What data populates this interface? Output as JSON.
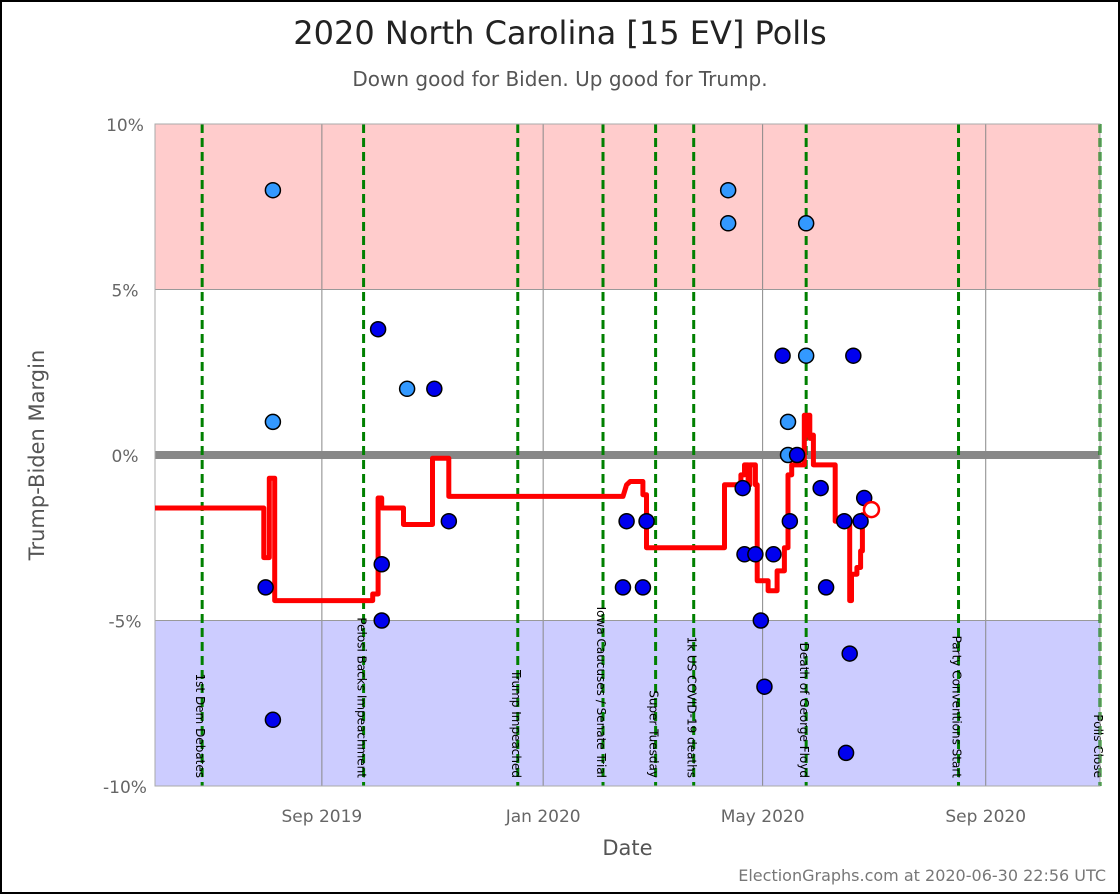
{
  "chart_data": {
    "type": "scatter",
    "title": "2020 North Carolina [15 EV] Polls",
    "subtitle": "Down good for Biden. Up good for Trump.",
    "xlabel": "Date",
    "ylabel": "Trump-Biden Margin",
    "ylim": [
      -10,
      10
    ],
    "xlim": [
      "2019-06-01",
      "2020-11-03"
    ],
    "yticks": [
      {
        "value": 10,
        "label": "10%"
      },
      {
        "value": 5,
        "label": "5%"
      },
      {
        "value": 0,
        "label": "0%"
      },
      {
        "value": -5,
        "label": "-5%"
      },
      {
        "value": -10,
        "label": "-10%"
      }
    ],
    "xticks": [
      {
        "date": "2019-09-01",
        "label": "Sep 2019"
      },
      {
        "date": "2020-01-01",
        "label": "Jan 2020"
      },
      {
        "date": "2020-05-01",
        "label": "May 2020"
      },
      {
        "date": "2020-09-01",
        "label": "Sep 2020"
      }
    ],
    "bands": [
      {
        "from": 5,
        "to": 10,
        "color": "#ffcccc"
      },
      {
        "from": -10,
        "to": -5,
        "color": "#ccccff"
      }
    ],
    "events": [
      {
        "date": "2019-06-27",
        "label": "1st Dem Debates"
      },
      {
        "date": "2019-09-24",
        "label": "Pelosi Backs Impeachment"
      },
      {
        "date": "2019-12-18",
        "label": "Trump Impeached"
      },
      {
        "date": "2020-02-03",
        "label": "Iowa Caucuses / Senate Trial"
      },
      {
        "date": "2020-03-03",
        "label": "Super Tuesday"
      },
      {
        "date": "2020-03-24",
        "label": "1k US COVID-19 deaths"
      },
      {
        "date": "2020-05-25",
        "label": "Death of George Floyd"
      },
      {
        "date": "2020-08-17",
        "label": "Party Conventions Start"
      },
      {
        "date": "2020-11-03",
        "label": "Polls Close"
      }
    ],
    "polls": [
      {
        "date": "2019-08-05",
        "margin": 8,
        "type": "light"
      },
      {
        "date": "2019-08-05",
        "margin": 1,
        "type": "light"
      },
      {
        "date": "2019-08-01",
        "margin": -4,
        "type": "dark"
      },
      {
        "date": "2019-08-05",
        "margin": -8,
        "type": "dark"
      },
      {
        "date": "2019-10-02",
        "margin": 3.8,
        "type": "dark"
      },
      {
        "date": "2019-10-04",
        "margin": -3.3,
        "type": "dark"
      },
      {
        "date": "2019-10-04",
        "margin": -5,
        "type": "dark"
      },
      {
        "date": "2019-10-18",
        "margin": 2,
        "type": "light"
      },
      {
        "date": "2019-11-02",
        "margin": 2,
        "type": "dark"
      },
      {
        "date": "2019-11-10",
        "margin": -2,
        "type": "dark"
      },
      {
        "date": "2020-02-14",
        "margin": -4,
        "type": "dark"
      },
      {
        "date": "2020-02-16",
        "margin": -2,
        "type": "dark"
      },
      {
        "date": "2020-02-25",
        "margin": -4,
        "type": "dark"
      },
      {
        "date": "2020-02-27",
        "margin": -2,
        "type": "dark"
      },
      {
        "date": "2020-04-12",
        "margin": 8,
        "type": "light"
      },
      {
        "date": "2020-04-12",
        "margin": 7,
        "type": "light"
      },
      {
        "date": "2020-04-20",
        "margin": -1,
        "type": "dark"
      },
      {
        "date": "2020-04-21",
        "margin": -3,
        "type": "dark"
      },
      {
        "date": "2020-04-27",
        "margin": -3,
        "type": "dark"
      },
      {
        "date": "2020-04-30",
        "margin": -5,
        "type": "dark"
      },
      {
        "date": "2020-05-02",
        "margin": -7,
        "type": "dark"
      },
      {
        "date": "2020-05-07",
        "margin": -3,
        "type": "dark"
      },
      {
        "date": "2020-05-12",
        "margin": 3,
        "type": "dark"
      },
      {
        "date": "2020-05-15",
        "margin": 1,
        "type": "light"
      },
      {
        "date": "2020-05-15",
        "margin": 0,
        "type": "light"
      },
      {
        "date": "2020-05-16",
        "margin": -2,
        "type": "dark"
      },
      {
        "date": "2020-05-20",
        "margin": 0,
        "type": "dark"
      },
      {
        "date": "2020-05-25",
        "margin": 3,
        "type": "light"
      },
      {
        "date": "2020-05-25",
        "margin": 7,
        "type": "light"
      },
      {
        "date": "2020-06-02",
        "margin": -1,
        "type": "dark"
      },
      {
        "date": "2020-06-05",
        "margin": -4,
        "type": "dark"
      },
      {
        "date": "2020-06-15",
        "margin": -2,
        "type": "dark"
      },
      {
        "date": "2020-06-16",
        "margin": -9,
        "type": "dark"
      },
      {
        "date": "2020-06-18",
        "margin": -6,
        "type": "dark"
      },
      {
        "date": "2020-06-20",
        "margin": 3,
        "type": "dark"
      },
      {
        "date": "2020-06-24",
        "margin": -2,
        "type": "dark"
      },
      {
        "date": "2020-06-26",
        "margin": -1.3,
        "type": "dark"
      }
    ],
    "average": [
      [
        "2019-06-01",
        -1.6
      ],
      [
        "2019-07-31",
        -1.6
      ],
      [
        "2019-07-31",
        -3.1
      ],
      [
        "2019-08-03",
        -3.1
      ],
      [
        "2019-08-03",
        -0.7
      ],
      [
        "2019-08-06",
        -0.7
      ],
      [
        "2019-08-06",
        -4.4
      ],
      [
        "2019-09-29",
        -4.4
      ],
      [
        "2019-09-29",
        -4.2
      ],
      [
        "2019-10-02",
        -4.2
      ],
      [
        "2019-10-02",
        -1.3
      ],
      [
        "2019-10-04",
        -1.3
      ],
      [
        "2019-10-04",
        -1.6
      ],
      [
        "2019-10-16",
        -1.6
      ],
      [
        "2019-10-16",
        -2.1
      ],
      [
        "2019-11-01",
        -2.1
      ],
      [
        "2019-11-01",
        -0.1
      ],
      [
        "2019-11-10",
        -0.1
      ],
      [
        "2019-11-10",
        -1.25
      ],
      [
        "2020-02-14",
        -1.25
      ],
      [
        "2020-02-16",
        -0.9
      ],
      [
        "2020-02-18",
        -0.8
      ],
      [
        "2020-02-25",
        -0.8
      ],
      [
        "2020-02-25",
        -1.2
      ],
      [
        "2020-02-27",
        -1.2
      ],
      [
        "2020-02-27",
        -2.8
      ],
      [
        "2020-04-10",
        -2.8
      ],
      [
        "2020-04-10",
        -0.9
      ],
      [
        "2020-04-19",
        -0.9
      ],
      [
        "2020-04-19",
        -0.6
      ],
      [
        "2020-04-21",
        -0.6
      ],
      [
        "2020-04-21",
        -0.3
      ],
      [
        "2020-04-23",
        -0.3
      ],
      [
        "2020-04-23",
        -0.9
      ],
      [
        "2020-04-24",
        -0.9
      ],
      [
        "2020-04-24",
        -0.3
      ],
      [
        "2020-04-27",
        -0.3
      ],
      [
        "2020-04-27",
        -0.9
      ],
      [
        "2020-04-28",
        -0.9
      ],
      [
        "2020-04-28",
        -3.8
      ],
      [
        "2020-05-04",
        -3.8
      ],
      [
        "2020-05-04",
        -4.1
      ],
      [
        "2020-05-09",
        -4.1
      ],
      [
        "2020-05-09",
        -3.5
      ],
      [
        "2020-05-13",
        -3.5
      ],
      [
        "2020-05-13",
        -2.8
      ],
      [
        "2020-05-15",
        -2.8
      ],
      [
        "2020-05-15",
        -0.6
      ],
      [
        "2020-05-17",
        -0.6
      ],
      [
        "2020-05-17",
        -0.3
      ],
      [
        "2020-05-24",
        -0.3
      ],
      [
        "2020-05-24",
        1.2
      ],
      [
        "2020-05-25",
        1.2
      ],
      [
        "2020-05-25",
        0.6
      ],
      [
        "2020-05-26",
        0.6
      ],
      [
        "2020-05-26",
        1.2
      ],
      [
        "2020-05-27",
        1.2
      ],
      [
        "2020-05-27",
        0.5
      ],
      [
        "2020-05-28",
        0.5
      ],
      [
        "2020-05-28",
        0.6
      ],
      [
        "2020-05-29",
        0.6
      ],
      [
        "2020-05-29",
        -0.3
      ],
      [
        "2020-06-10",
        -0.3
      ],
      [
        "2020-06-10",
        -2.0
      ],
      [
        "2020-06-18",
        -2.0
      ],
      [
        "2020-06-18",
        -4.4
      ],
      [
        "2020-06-19",
        -4.4
      ],
      [
        "2020-06-19",
        -3.6
      ],
      [
        "2020-06-22",
        -3.6
      ],
      [
        "2020-06-22",
        -3.4
      ],
      [
        "2020-06-24",
        -3.4
      ],
      [
        "2020-06-24",
        -2.9
      ],
      [
        "2020-06-25",
        -2.9
      ],
      [
        "2020-06-25",
        -1.8
      ],
      [
        "2020-06-28",
        -1.8
      ]
    ],
    "current_average": {
      "date": "2020-06-30",
      "margin": -1.65
    },
    "colors": {
      "dark_poll": "#0000ee",
      "light_poll": "#3399ff",
      "average": "#ff0000",
      "event_line": "#008000"
    }
  },
  "credit": "ElectionGraphs.com at 2020-06-30 22:56 UTC"
}
